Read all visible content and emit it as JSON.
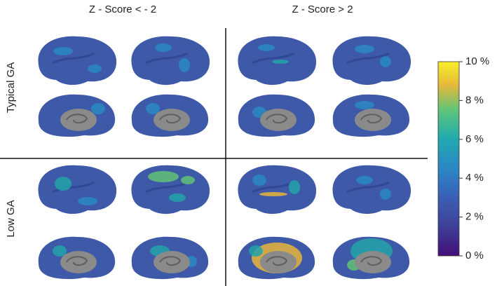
{
  "columns": [
    "Z - Score < - 2",
    "Z - Score > 2"
  ],
  "rows": [
    "Typical GA",
    "Low GA"
  ],
  "colorbar": {
    "lim": [
      0,
      10
    ],
    "ticks": [
      {
        "value": 0,
        "label": "0 %"
      },
      {
        "value": 2,
        "label": "2 %"
      },
      {
        "value": 4,
        "label": "4 %"
      },
      {
        "value": 6,
        "label": "6 %"
      },
      {
        "value": 8,
        "label": "8 %"
      },
      {
        "value": 10,
        "label": "10 %"
      }
    ]
  }
}
